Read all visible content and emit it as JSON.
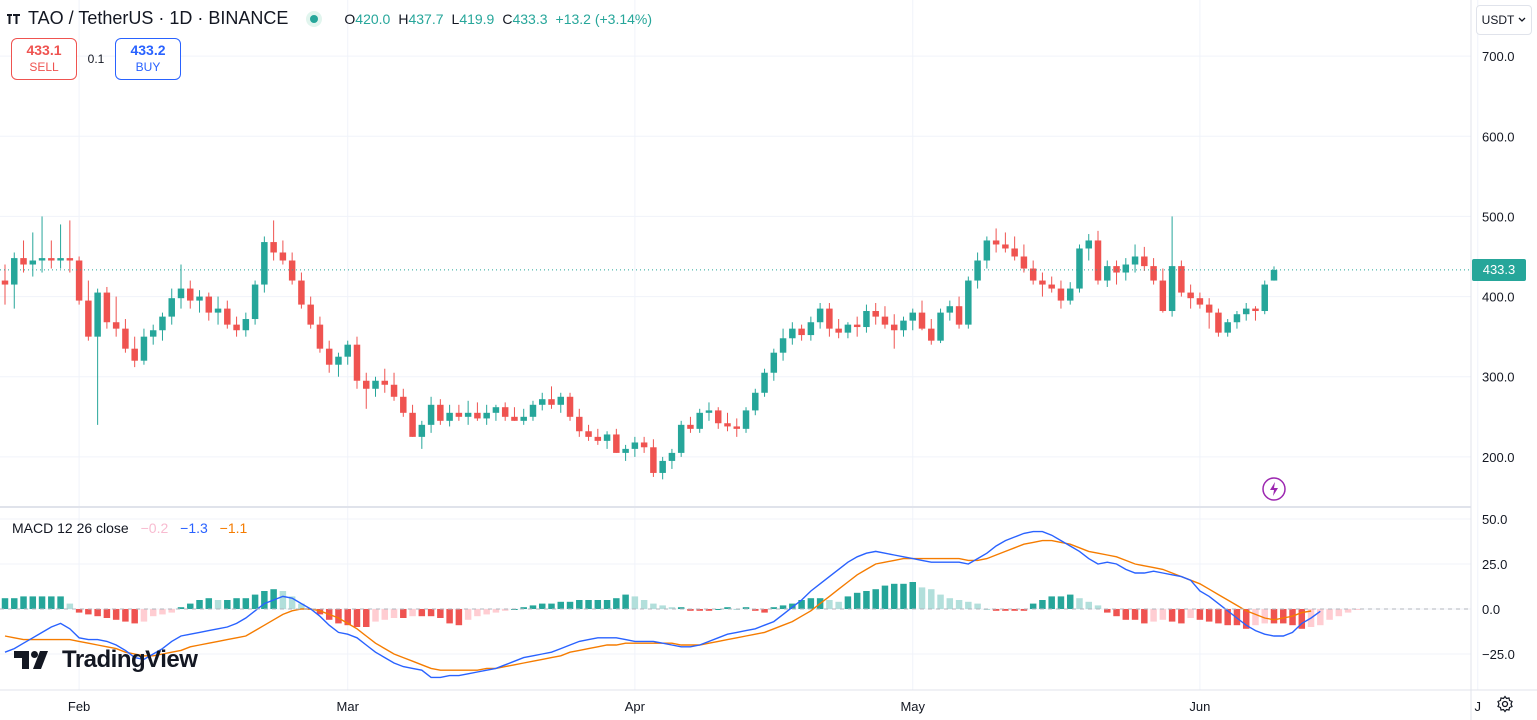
{
  "header": {
    "title": "TAO / TetherUS · 1D · BINANCE",
    "ohlc": [
      {
        "k": "O",
        "v": "420.0"
      },
      {
        "k": "H",
        "v": "437.7"
      },
      {
        "k": "L",
        "v": "419.9"
      },
      {
        "k": "C",
        "v": "433.3"
      },
      {
        "k": "",
        "v": "+13.2 (+3.14%)"
      }
    ]
  },
  "trade": {
    "sell_price": "433.1",
    "sell_label": "SELL",
    "spread": "0.1",
    "buy_price": "433.2",
    "buy_label": "BUY"
  },
  "currency": "USDT",
  "last_price": "433.3",
  "macd_legend": {
    "name": "MACD 12 26 close",
    "hist": "−0.2",
    "macd": "−1.3",
    "signal": "−1.1"
  },
  "brand": "TradingView",
  "colors": {
    "up": "#26a69a",
    "down": "#ef5350",
    "up_light": "#b2dfdb",
    "down_light": "#ffcdd2",
    "macd": "#2962ff",
    "signal": "#f57c00",
    "sell": "#ef5350",
    "buy": "#2962ff"
  },
  "icons": {
    "settings": "gear-icon",
    "alert": "lightning-icon",
    "dropdown": "chevron-down-icon"
  },
  "chart_data": [
    {
      "type": "candlestick",
      "title": "TAO / TetherUS · 1D · BINANCE",
      "y_ticks": [
        "700.0",
        "600.0",
        "500.0",
        "400.0",
        "300.0",
        "200.0"
      ],
      "ylim": [
        140,
        760
      ],
      "x_ticks": [
        "Feb",
        "Mar",
        "Apr",
        "May",
        "Jun",
        "J"
      ],
      "date_range": [
        "2024-01-24",
        "2024-06-10"
      ],
      "last_price": 433.3,
      "ohlc": [
        [
          420,
          440,
          390,
          415
        ],
        [
          415,
          455,
          385,
          448
        ],
        [
          448,
          470,
          430,
          440
        ],
        [
          440,
          480,
          425,
          445
        ],
        [
          445,
          500,
          430,
          448
        ],
        [
          448,
          470,
          435,
          445
        ],
        [
          445,
          490,
          435,
          448
        ],
        [
          448,
          495,
          430,
          445
        ],
        [
          445,
          450,
          390,
          395
        ],
        [
          395,
          420,
          345,
          350
        ],
        [
          350,
          410,
          240,
          405
        ],
        [
          405,
          412,
          360,
          368
        ],
        [
          368,
          400,
          350,
          360
        ],
        [
          360,
          372,
          330,
          335
        ],
        [
          335,
          350,
          312,
          320
        ],
        [
          320,
          360,
          315,
          350
        ],
        [
          350,
          365,
          340,
          358
        ],
        [
          358,
          380,
          345,
          375
        ],
        [
          375,
          410,
          365,
          398
        ],
        [
          398,
          440,
          385,
          410
        ],
        [
          410,
          420,
          385,
          395
        ],
        [
          395,
          408,
          380,
          400
        ],
        [
          400,
          405,
          370,
          380
        ],
        [
          380,
          400,
          365,
          385
        ],
        [
          385,
          395,
          360,
          365
        ],
        [
          365,
          375,
          350,
          358
        ],
        [
          358,
          380,
          350,
          372
        ],
        [
          372,
          420,
          365,
          415
        ],
        [
          415,
          475,
          405,
          468
        ],
        [
          468,
          495,
          445,
          455
        ],
        [
          455,
          470,
          440,
          445
        ],
        [
          445,
          455,
          415,
          420
        ],
        [
          420,
          430,
          385,
          390
        ],
        [
          390,
          400,
          360,
          365
        ],
        [
          365,
          375,
          330,
          335
        ],
        [
          335,
          345,
          305,
          315
        ],
        [
          315,
          330,
          300,
          325
        ],
        [
          325,
          345,
          315,
          340
        ],
        [
          340,
          350,
          285,
          295
        ],
        [
          295,
          305,
          260,
          285
        ],
        [
          285,
          300,
          275,
          295
        ],
        [
          295,
          310,
          280,
          290
        ],
        [
          290,
          305,
          270,
          275
        ],
        [
          275,
          285,
          250,
          255
        ],
        [
          255,
          265,
          225,
          225
        ],
        [
          225,
          245,
          210,
          240
        ],
        [
          240,
          275,
          230,
          265
        ],
        [
          265,
          272,
          240,
          245
        ],
        [
          245,
          265,
          238,
          255
        ],
        [
          255,
          265,
          245,
          250
        ],
        [
          250,
          270,
          240,
          255
        ],
        [
          255,
          268,
          245,
          248
        ],
        [
          248,
          265,
          240,
          255
        ],
        [
          255,
          265,
          245,
          262
        ],
        [
          262,
          268,
          245,
          250
        ],
        [
          250,
          262,
          245,
          245
        ],
        [
          245,
          260,
          240,
          250
        ],
        [
          250,
          270,
          245,
          265
        ],
        [
          265,
          280,
          258,
          272
        ],
        [
          272,
          288,
          260,
          265
        ],
        [
          265,
          280,
          255,
          275
        ],
        [
          275,
          280,
          245,
          250
        ],
        [
          250,
          260,
          225,
          232
        ],
        [
          232,
          240,
          220,
          225
        ],
        [
          225,
          235,
          215,
          220
        ],
        [
          220,
          232,
          210,
          228
        ],
        [
          228,
          235,
          205,
          205
        ],
        [
          205,
          215,
          195,
          210
        ],
        [
          210,
          225,
          200,
          218
        ],
        [
          218,
          225,
          205,
          212
        ],
        [
          212,
          222,
          175,
          180
        ],
        [
          180,
          200,
          172,
          195
        ],
        [
          195,
          210,
          185,
          205
        ],
        [
          205,
          245,
          200,
          240
        ],
        [
          240,
          250,
          230,
          235
        ],
        [
          235,
          260,
          230,
          255
        ],
        [
          255,
          268,
          245,
          258
        ],
        [
          258,
          262,
          235,
          242
        ],
        [
          242,
          255,
          232,
          238
        ],
        [
          238,
          248,
          225,
          235
        ],
        [
          235,
          262,
          230,
          258
        ],
        [
          258,
          285,
          252,
          280
        ],
        [
          280,
          310,
          275,
          305
        ],
        [
          305,
          335,
          295,
          330
        ],
        [
          330,
          360,
          320,
          348
        ],
        [
          348,
          368,
          340,
          360
        ],
        [
          360,
          365,
          345,
          352
        ],
        [
          352,
          375,
          345,
          368
        ],
        [
          368,
          392,
          360,
          385
        ],
        [
          385,
          392,
          350,
          360
        ],
        [
          360,
          372,
          348,
          355
        ],
        [
          355,
          368,
          348,
          365
        ],
        [
          365,
          375,
          350,
          362
        ],
        [
          362,
          390,
          355,
          382
        ],
        [
          382,
          392,
          365,
          375
        ],
        [
          375,
          388,
          360,
          365
        ],
        [
          365,
          378,
          335,
          358
        ],
        [
          358,
          375,
          350,
          370
        ],
        [
          370,
          385,
          358,
          380
        ],
        [
          380,
          395,
          358,
          360
        ],
        [
          360,
          372,
          340,
          345
        ],
        [
          345,
          385,
          342,
          380
        ],
        [
          380,
          395,
          370,
          388
        ],
        [
          388,
          400,
          360,
          365
        ],
        [
          365,
          425,
          360,
          420
        ],
        [
          420,
          455,
          410,
          445
        ],
        [
          445,
          475,
          435,
          470
        ],
        [
          470,
          485,
          455,
          465
        ],
        [
          465,
          480,
          455,
          460
        ],
        [
          460,
          475,
          445,
          450
        ],
        [
          450,
          465,
          430,
          435
        ],
        [
          435,
          445,
          415,
          420
        ],
        [
          420,
          430,
          400,
          415
        ],
        [
          415,
          425,
          405,
          410
        ],
        [
          410,
          420,
          385,
          395
        ],
        [
          395,
          418,
          390,
          410
        ],
        [
          410,
          465,
          405,
          460
        ],
        [
          460,
          478,
          445,
          470
        ],
        [
          470,
          482,
          415,
          420
        ],
        [
          420,
          445,
          412,
          438
        ],
        [
          438,
          445,
          415,
          430
        ],
        [
          430,
          448,
          420,
          440
        ],
        [
          440,
          465,
          430,
          450
        ],
        [
          450,
          462,
          432,
          438
        ],
        [
          438,
          448,
          415,
          420
        ],
        [
          420,
          435,
          380,
          382
        ],
        [
          382,
          500,
          375,
          438
        ],
        [
          438,
          445,
          400,
          405
        ],
        [
          405,
          415,
          385,
          398
        ],
        [
          398,
          405,
          385,
          390
        ],
        [
          390,
          398,
          360,
          380
        ],
        [
          380,
          385,
          350,
          355
        ],
        [
          355,
          372,
          350,
          368
        ],
        [
          368,
          382,
          360,
          378
        ],
        [
          378,
          392,
          370,
          385
        ],
        [
          385,
          388,
          370,
          382
        ],
        [
          382,
          420,
          378,
          415
        ],
        [
          420,
          437.7,
          419.9,
          433.3
        ]
      ]
    },
    {
      "type": "macd",
      "title": "MACD 12 26 close",
      "y_ticks": [
        "50.0",
        "25.0",
        "0.0",
        "−25.0"
      ],
      "ylim": [
        -45,
        55
      ],
      "current": {
        "hist": -0.2,
        "macd": -1.3,
        "signal": -1.1
      },
      "macd": [
        -24,
        -22,
        -19,
        -16,
        -13,
        -10,
        -8,
        -11,
        -16,
        -17,
        -17,
        -18,
        -20,
        -23,
        -27,
        -28,
        -25,
        -22,
        -18,
        -15,
        -14,
        -13,
        -12,
        -11,
        -10,
        -8,
        -5,
        -1,
        3,
        5,
        7,
        6,
        3,
        0,
        -4,
        -9,
        -13,
        -14,
        -16,
        -20,
        -24,
        -27,
        -30,
        -32,
        -33,
        -34,
        -38,
        -38,
        -37,
        -37,
        -36,
        -35,
        -34,
        -33,
        -31,
        -29,
        -27,
        -26,
        -25,
        -24,
        -22,
        -20,
        -18,
        -17,
        -16,
        -16,
        -16,
        -17,
        -18,
        -18,
        -18,
        -19,
        -20,
        -21,
        -21,
        -20,
        -18,
        -16,
        -14,
        -13,
        -12,
        -11,
        -9,
        -7,
        -3,
        1,
        5,
        10,
        14,
        18,
        22,
        26,
        29,
        31,
        32,
        31,
        30,
        29,
        28,
        27,
        26,
        26,
        26,
        26,
        25,
        28,
        31,
        35,
        38,
        40,
        42,
        43,
        43,
        41,
        38,
        35,
        32,
        28,
        25,
        26,
        25,
        22,
        20,
        20,
        21,
        20,
        19,
        18,
        16,
        10,
        7,
        3,
        -1,
        -5,
        -9,
        -12,
        -14,
        -15,
        -15,
        -13,
        -8,
        -5,
        -1.3
      ],
      "signal": [
        -15,
        -16,
        -17,
        -17,
        -17,
        -17,
        -17,
        -17,
        -18,
        -19,
        -20,
        -21,
        -22,
        -24,
        -25,
        -26,
        -26,
        -25,
        -24,
        -23,
        -21,
        -20,
        -19,
        -18,
        -17,
        -16,
        -15,
        -12,
        -9,
        -6,
        -3,
        -1,
        0,
        0,
        -1,
        -3,
        -5,
        -8,
        -11,
        -15,
        -19,
        -22,
        -25,
        -27,
        -29,
        -31,
        -33,
        -34,
        -34,
        -34,
        -34,
        -34,
        -33,
        -33,
        -32,
        -31,
        -30,
        -29,
        -28,
        -27,
        -26,
        -24,
        -23,
        -22,
        -21,
        -20,
        -20,
        -19,
        -19,
        -19,
        -19,
        -19,
        -19,
        -20,
        -20,
        -20,
        -19,
        -18,
        -17,
        -16,
        -15,
        -14,
        -13,
        -11,
        -9,
        -7,
        -4,
        -1,
        3,
        7,
        11,
        15,
        19,
        22,
        25,
        26,
        27,
        28,
        28,
        28,
        28,
        28,
        28,
        28,
        27,
        27,
        28,
        30,
        32,
        34,
        36,
        37,
        38,
        38,
        37,
        36,
        34,
        32,
        31,
        30,
        29,
        27,
        25,
        24,
        23,
        22,
        20,
        18,
        16,
        14,
        11,
        8,
        5,
        2,
        -1,
        -3,
        -5,
        -6,
        -5,
        -4,
        -2,
        -1.1
      ],
      "histogram": [
        6,
        6,
        7,
        7,
        7,
        7,
        7,
        3,
        -2,
        -3,
        -4,
        -5,
        -6,
        -7,
        -8,
        -7,
        -4,
        -3,
        -2,
        1,
        3,
        5,
        6,
        5,
        5,
        6,
        6,
        8,
        10,
        11,
        10,
        7,
        3,
        0,
        -3,
        -6,
        -8,
        -9,
        -10,
        -10,
        -7,
        -6,
        -5,
        -5,
        -4,
        -4,
        -4,
        -5,
        -8,
        -9,
        -6,
        -4,
        -3,
        -2,
        -1,
        0,
        1,
        2,
        3,
        3,
        4,
        4,
        5,
        5,
        5,
        5,
        6,
        8,
        7,
        5,
        3,
        2,
        1,
        1,
        -1,
        -1,
        -1,
        0,
        1,
        0,
        1,
        -1,
        -2,
        1,
        2,
        3,
        5,
        6,
        6,
        5,
        4,
        7,
        9,
        10,
        11,
        13,
        14,
        14,
        15,
        12,
        11,
        8,
        6,
        5,
        4,
        3,
        0,
        -1,
        -1,
        -1,
        -1,
        3,
        5,
        7,
        7,
        8,
        6,
        4,
        2,
        -2,
        -4,
        -6,
        -6,
        -8,
        -7,
        -6,
        -7,
        -8,
        -5,
        -6,
        -7,
        -8,
        -9,
        -9,
        -11,
        -9,
        -8,
        -8,
        -8,
        -9,
        -11,
        -10,
        -9,
        -6,
        -4,
        -2,
        -0.2
      ]
    }
  ]
}
